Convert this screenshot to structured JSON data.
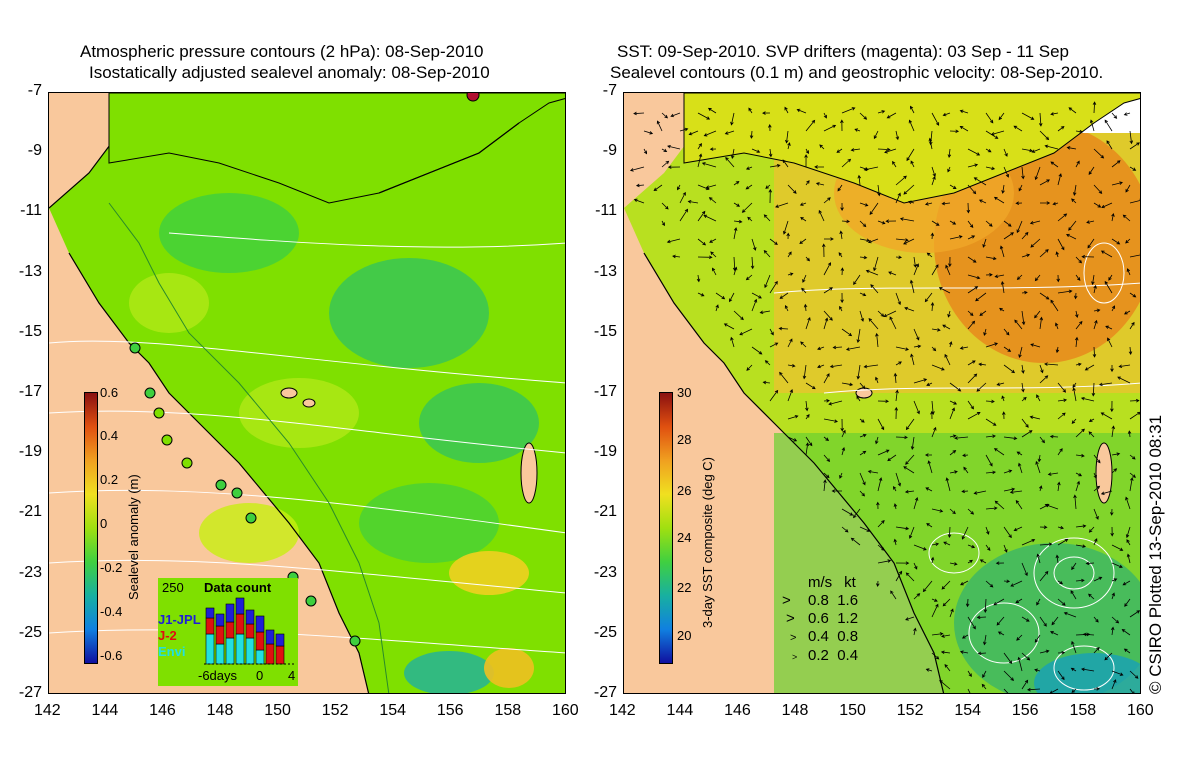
{
  "left_panel": {
    "title_line1": "Atmospheric pressure contours (2 hPa): 08-Sep-2010",
    "title_line2": "Isostatically adjusted sealevel anomaly: 08-Sep-2010",
    "colorbar_label": "Sealevel anomaly (m)",
    "colorbar_ticks": [
      "0.6",
      "0.4",
      "0.2",
      "0",
      "-0.2",
      "-0.4",
      "-0.6"
    ],
    "inset": {
      "title": "Data count",
      "ymax_label": "250",
      "legend": [
        "J1-JPL",
        "J-2",
        "Envi"
      ],
      "legend_colors": [
        "#1f1fd6",
        "#e01010",
        "#22e0e0"
      ],
      "xtick_labels": [
        "-6days",
        "0",
        "4"
      ]
    }
  },
  "right_panel": {
    "title_line1": "SST: 09-Sep-2010. SVP drifters (magenta): 03 Sep - 11 Sep",
    "title_line2": "Sealevel contours (0.1 m) and geostrophic velocity: 08-Sep-2010.",
    "colorbar_label": "3-day SST composite (deg C)",
    "colorbar_ticks": [
      "30",
      "28",
      "26",
      "24",
      "22",
      "20"
    ],
    "velocity_key": {
      "header_ms": "m/s",
      "header_kt": "kt",
      "rows": [
        [
          "0.8",
          "1.6"
        ],
        [
          "0.6",
          "1.2"
        ],
        [
          "0.4",
          "0.8"
        ],
        [
          "0.2",
          "0.4"
        ]
      ]
    },
    "credit": "© CSIRO Plotted 13-Sep-2010 08:31"
  },
  "axes": {
    "y_ticks": [
      "-7",
      "-9",
      "-11",
      "-13",
      "-15",
      "-17",
      "-19",
      "-21",
      "-23",
      "-25",
      "-27"
    ],
    "x_ticks": [
      "142",
      "144",
      "146",
      "148",
      "150",
      "152",
      "154",
      "156",
      "158",
      "160"
    ]
  },
  "colors": {
    "land": "#f9c89c",
    "sea_green": "#7fe000",
    "sst_orange": "#e88a1c"
  }
}
